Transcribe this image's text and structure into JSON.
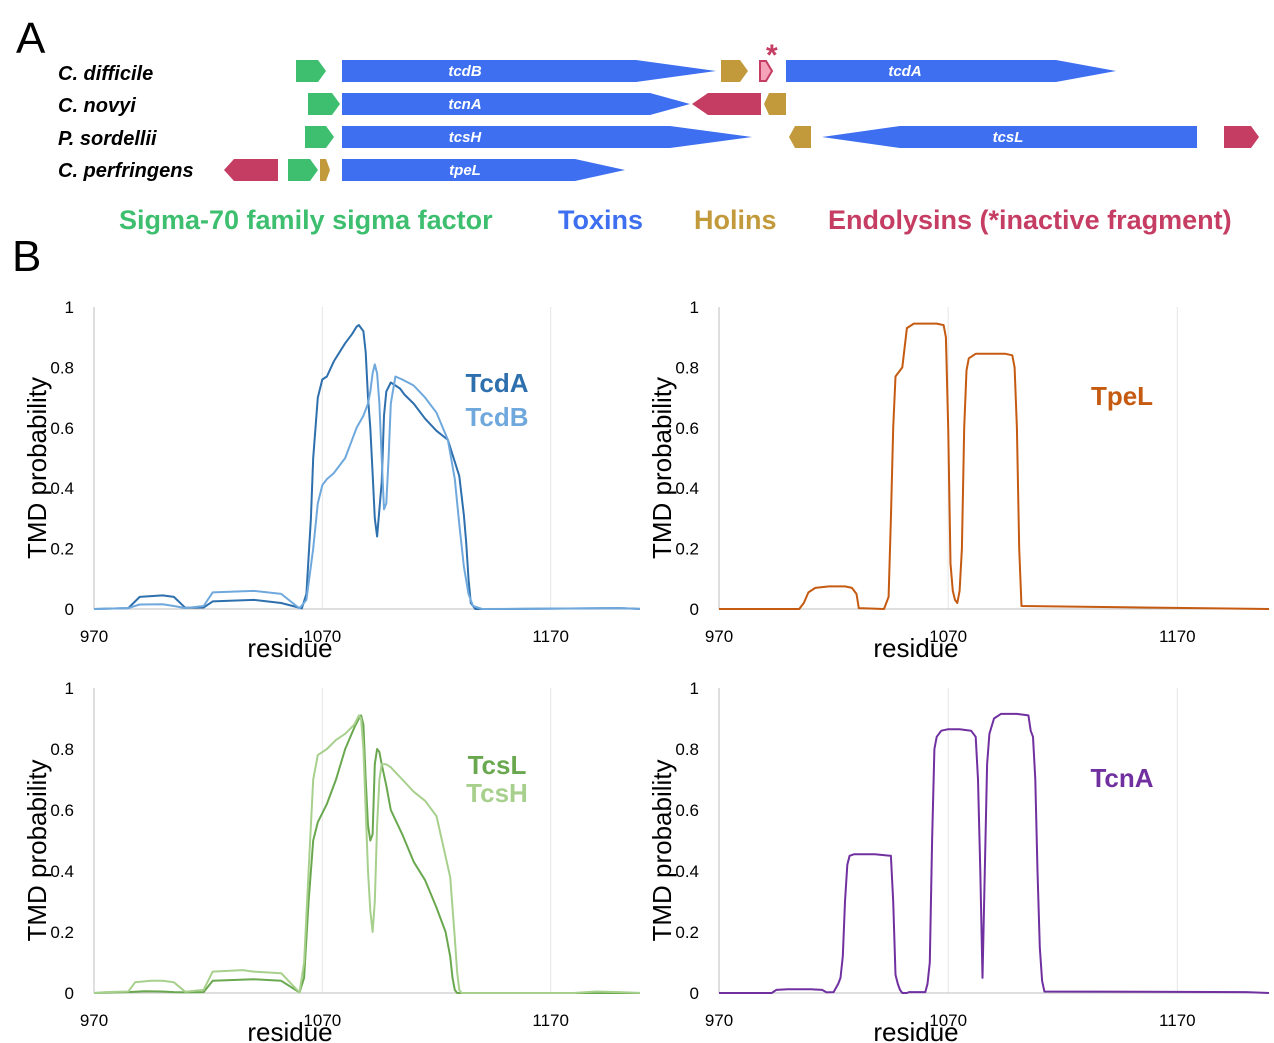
{
  "panel_labels": {
    "a": "A",
    "b": "B"
  },
  "colors": {
    "sigma": "#3dbf6f",
    "toxin": "#3d6ff0",
    "holin": "#c29a3c",
    "endolysin": "#c63d63"
  },
  "gene_map": {
    "organisms": [
      "C. difficile",
      "C. novyi",
      "P. sordellii",
      "C. perfringens"
    ],
    "gene_labels": [
      "tcdB",
      "tcdA",
      "tcnA",
      "tcsH",
      "tcsL",
      "tpeL"
    ],
    "fragment_marker": "*"
  },
  "legend": {
    "sigma": "Sigma-70 family sigma factor",
    "toxins": "Toxins",
    "holins": "Holins",
    "endolysins": "Endolysins  (*inactive fragment)"
  },
  "chart_data": [
    {
      "type": "line",
      "ylabel": "TMD probability",
      "xlabel": "residue",
      "xlim": [
        970,
        1210
      ],
      "ylim": [
        0,
        1
      ],
      "xticks": [
        970,
        1070,
        1170
      ],
      "yticks": [
        0,
        0.2,
        0.4,
        0.6,
        0.8,
        1
      ],
      "grid": "vertical",
      "series": [
        {
          "name": "TcdA",
          "color": "#2e6fad",
          "x": [
            970,
            985,
            990,
            1000,
            1005,
            1010,
            1018,
            1022,
            1040,
            1052,
            1061,
            1063,
            1065,
            1066,
            1068,
            1070,
            1072,
            1075,
            1080,
            1083,
            1085,
            1086,
            1087,
            1088,
            1089,
            1090,
            1091,
            1092,
            1093,
            1094,
            1096,
            1097,
            1098,
            1100,
            1102,
            1104,
            1105,
            1106,
            1110,
            1115,
            1120,
            1125,
            1130,
            1132,
            1133,
            1134,
            1135,
            1137,
            1150,
            1200,
            1210
          ],
          "y": [
            0,
            0.003,
            0.04,
            0.045,
            0.04,
            0.004,
            0.005,
            0.025,
            0.03,
            0.02,
            0.002,
            0.05,
            0.3,
            0.5,
            0.7,
            0.76,
            0.77,
            0.82,
            0.88,
            0.91,
            0.935,
            0.94,
            0.93,
            0.92,
            0.85,
            0.7,
            0.6,
            0.45,
            0.3,
            0.24,
            0.42,
            0.64,
            0.72,
            0.75,
            0.74,
            0.73,
            0.72,
            0.71,
            0.68,
            0.63,
            0.59,
            0.56,
            0.44,
            0.31,
            0.22,
            0.1,
            0.02,
            0,
            0,
            0.003,
            0
          ]
        },
        {
          "name": "TcdB",
          "color": "#6fa8dc",
          "x": [
            970,
            985,
            990,
            1000,
            1005,
            1010,
            1018,
            1022,
            1040,
            1052,
            1060,
            1063,
            1066,
            1068,
            1070,
            1072,
            1075,
            1080,
            1085,
            1088,
            1090,
            1091,
            1092,
            1093,
            1094,
            1095,
            1096,
            1097,
            1098,
            1099,
            1100,
            1102,
            1105,
            1110,
            1115,
            1120,
            1125,
            1128,
            1130,
            1132,
            1134,
            1136,
            1140,
            1200,
            1210
          ],
          "y": [
            0,
            0.003,
            0.015,
            0.016,
            0.01,
            0.003,
            0.01,
            0.055,
            0.06,
            0.05,
            0.002,
            0.03,
            0.2,
            0.35,
            0.41,
            0.43,
            0.45,
            0.5,
            0.6,
            0.64,
            0.68,
            0.72,
            0.78,
            0.81,
            0.78,
            0.68,
            0.5,
            0.33,
            0.35,
            0.5,
            0.68,
            0.77,
            0.76,
            0.74,
            0.7,
            0.65,
            0.56,
            0.43,
            0.28,
            0.14,
            0.05,
            0.01,
            0,
            0.003,
            0
          ]
        }
      ]
    },
    {
      "type": "line",
      "ylabel": "TMD probability",
      "xlabel": "residue",
      "xlim": [
        970,
        1210
      ],
      "ylim": [
        0,
        1
      ],
      "xticks": [
        970,
        1070,
        1170
      ],
      "yticks": [
        0,
        0.2,
        0.4,
        0.6,
        0.8,
        1
      ],
      "grid": "vertical",
      "series": [
        {
          "name": "TpeL",
          "color": "#c55a11",
          "x": [
            970,
            1005,
            1007,
            1009,
            1012,
            1018,
            1025,
            1028,
            1030,
            1031,
            1042,
            1044,
            1045,
            1046,
            1047,
            1050,
            1052,
            1055,
            1060,
            1065,
            1068,
            1069,
            1070,
            1071,
            1072,
            1073,
            1074,
            1075,
            1076,
            1077,
            1078,
            1079,
            1082,
            1085,
            1090,
            1095,
            1098,
            1099,
            1100,
            1101,
            1102,
            1210
          ],
          "y": [
            0,
            0,
            0.02,
            0.055,
            0.07,
            0.075,
            0.075,
            0.07,
            0.05,
            0.003,
            0,
            0.04,
            0.3,
            0.6,
            0.77,
            0.8,
            0.93,
            0.945,
            0.945,
            0.945,
            0.94,
            0.9,
            0.6,
            0.15,
            0.06,
            0.03,
            0.02,
            0.06,
            0.2,
            0.6,
            0.79,
            0.83,
            0.845,
            0.845,
            0.845,
            0.845,
            0.84,
            0.8,
            0.6,
            0.2,
            0.01,
            0
          ]
        }
      ]
    },
    {
      "type": "line",
      "ylabel": "TMD probability",
      "xlabel": "residue",
      "xlim": [
        970,
        1210
      ],
      "ylim": [
        0,
        1
      ],
      "xticks": [
        970,
        1070,
        1170
      ],
      "yticks": [
        0,
        0.2,
        0.4,
        0.6,
        0.8,
        1
      ],
      "grid": "vertical",
      "series": [
        {
          "name": "TcsL",
          "color": "#6aa84f",
          "x": [
            970,
            985,
            992,
            1000,
            1005,
            1010,
            1018,
            1022,
            1040,
            1052,
            1060,
            1062,
            1064,
            1066,
            1068,
            1072,
            1076,
            1080,
            1084,
            1086,
            1087,
            1088,
            1089,
            1090,
            1091,
            1092,
            1093,
            1094,
            1095,
            1096,
            1098,
            1100,
            1105,
            1110,
            1115,
            1120,
            1124,
            1126,
            1127,
            1128,
            1129,
            1210
          ],
          "y": [
            0,
            0.003,
            0.006,
            0.005,
            0.003,
            0.002,
            0.003,
            0.04,
            0.045,
            0.04,
            0.002,
            0.05,
            0.3,
            0.5,
            0.56,
            0.62,
            0.7,
            0.8,
            0.87,
            0.9,
            0.91,
            0.88,
            0.7,
            0.55,
            0.5,
            0.52,
            0.75,
            0.8,
            0.79,
            0.75,
            0.68,
            0.6,
            0.52,
            0.43,
            0.37,
            0.28,
            0.2,
            0.12,
            0.05,
            0.01,
            0,
            0
          ]
        },
        {
          "name": "TcsH",
          "color": "#a8d08d",
          "x": [
            970,
            975,
            985,
            988,
            995,
            1000,
            1005,
            1010,
            1018,
            1022,
            1035,
            1040,
            1052,
            1060,
            1062,
            1064,
            1066,
            1068,
            1072,
            1076,
            1080,
            1084,
            1086,
            1087,
            1088,
            1089,
            1090,
            1091,
            1092,
            1093,
            1094,
            1095,
            1096,
            1098,
            1100,
            1105,
            1110,
            1115,
            1120,
            1126,
            1128,
            1129,
            1130,
            1131,
            1180,
            1190,
            1200,
            1210
          ],
          "y": [
            0,
            0.003,
            0.005,
            0.035,
            0.04,
            0.04,
            0.035,
            0.004,
            0.01,
            0.07,
            0.075,
            0.07,
            0.065,
            0.002,
            0.1,
            0.4,
            0.7,
            0.78,
            0.8,
            0.83,
            0.85,
            0.88,
            0.91,
            0.9,
            0.8,
            0.6,
            0.4,
            0.27,
            0.2,
            0.3,
            0.55,
            0.7,
            0.75,
            0.75,
            0.74,
            0.7,
            0.66,
            0.63,
            0.58,
            0.38,
            0.18,
            0.07,
            0.01,
            0,
            0,
            0.005,
            0.003,
            0
          ]
        }
      ]
    },
    {
      "type": "line",
      "ylabel": "TMD probability",
      "xlabel": "residue",
      "xlim": [
        970,
        1210
      ],
      "ylim": [
        0,
        1
      ],
      "xticks": [
        970,
        1070,
        1170
      ],
      "yticks": [
        0,
        0.2,
        0.4,
        0.6,
        0.8,
        1
      ],
      "grid": "vertical",
      "series": [
        {
          "name": "TcnA",
          "color": "#7030a0",
          "x": [
            970,
            993,
            995,
            1000,
            1010,
            1015,
            1017,
            1020,
            1022,
            1023,
            1024,
            1025,
            1026,
            1027,
            1029,
            1032,
            1038,
            1045,
            1046,
            1047,
            1048,
            1049,
            1050,
            1052,
            1053,
            1060,
            1061,
            1062,
            1063,
            1064,
            1065,
            1067,
            1070,
            1075,
            1080,
            1082,
            1083,
            1084,
            1085,
            1086,
            1087,
            1088,
            1090,
            1093,
            1100,
            1105,
            1106,
            1107,
            1108,
            1109,
            1110,
            1111,
            1112,
            1200,
            1210
          ],
          "y": [
            0,
            0,
            0.01,
            0.012,
            0.012,
            0.01,
            0.002,
            0.003,
            0.03,
            0.05,
            0.12,
            0.3,
            0.42,
            0.45,
            0.455,
            0.455,
            0.455,
            0.45,
            0.3,
            0.06,
            0.03,
            0.01,
            0,
            0,
            0.003,
            0.003,
            0.03,
            0.1,
            0.5,
            0.8,
            0.84,
            0.86,
            0.865,
            0.865,
            0.86,
            0.84,
            0.7,
            0.4,
            0.05,
            0.4,
            0.75,
            0.85,
            0.9,
            0.915,
            0.915,
            0.91,
            0.86,
            0.84,
            0.7,
            0.4,
            0.15,
            0.04,
            0.005,
            0.003,
            0
          ]
        }
      ]
    }
  ]
}
